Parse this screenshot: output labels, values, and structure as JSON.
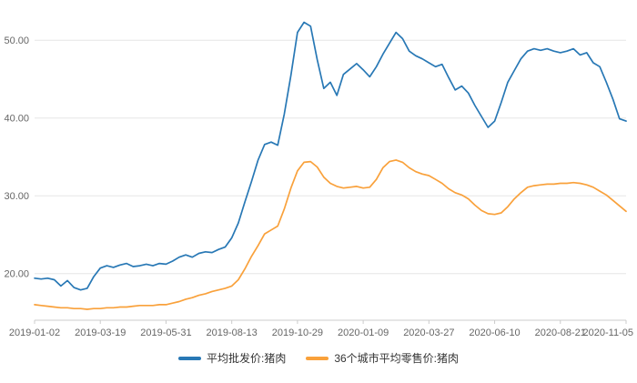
{
  "chart_data": {
    "type": "line",
    "title": "",
    "xlabel": "",
    "ylabel": "",
    "grid": true,
    "legend_position": "bottom",
    "ylim": [
      14,
      54
    ],
    "y_ticks": [
      20,
      30,
      40,
      50
    ],
    "y_tick_labels": [
      "20.00",
      "30.00",
      "40.00",
      "50.00"
    ],
    "x_tick_labels": [
      "2019-01-02",
      "2019-03-19",
      "2019-05-31",
      "2019-08-13",
      "2019-10-29",
      "2020-01-09",
      "2020-03-27",
      "2020-06-10",
      "2020-08-21",
      "2020-11-05"
    ],
    "series": [
      {
        "name": "平均批发价:猪肉",
        "color": "#2878b5",
        "values": [
          19.4,
          19.3,
          19.4,
          19.2,
          18.4,
          19.1,
          18.2,
          17.9,
          18.1,
          19.6,
          20.7,
          21.0,
          20.8,
          21.1,
          21.3,
          20.9,
          21.0,
          21.2,
          21.0,
          21.3,
          21.2,
          21.6,
          22.1,
          22.4,
          22.1,
          22.6,
          22.8,
          22.7,
          23.1,
          23.4,
          24.6,
          26.5,
          29.2,
          31.8,
          34.6,
          36.6,
          36.9,
          36.5,
          40.5,
          45.5,
          51.0,
          52.3,
          51.8,
          47.5,
          43.8,
          44.6,
          42.9,
          45.6,
          46.3,
          47.0,
          46.2,
          45.3,
          46.6,
          48.2,
          49.6,
          51.0,
          50.2,
          48.6,
          48.0,
          47.6,
          47.1,
          46.6,
          46.9,
          45.2,
          43.6,
          44.1,
          43.2,
          41.6,
          40.2,
          38.8,
          39.6,
          42.0,
          44.6,
          46.1,
          47.6,
          48.6,
          48.9,
          48.7,
          48.9,
          48.6,
          48.4,
          48.6,
          48.9,
          48.1,
          48.4,
          47.1,
          46.6,
          44.6,
          42.4,
          39.9,
          39.6
        ]
      },
      {
        "name": "36个城市平均零售价:猪肉",
        "color": "#f9a13b",
        "values": [
          16.0,
          15.9,
          15.8,
          15.7,
          15.6,
          15.6,
          15.5,
          15.5,
          15.4,
          15.5,
          15.5,
          15.6,
          15.6,
          15.7,
          15.7,
          15.8,
          15.9,
          15.9,
          15.9,
          16.0,
          16.0,
          16.2,
          16.4,
          16.7,
          16.9,
          17.2,
          17.4,
          17.7,
          17.9,
          18.1,
          18.4,
          19.2,
          20.6,
          22.2,
          23.6,
          25.1,
          25.6,
          26.1,
          28.3,
          31.0,
          33.2,
          34.3,
          34.4,
          33.7,
          32.4,
          31.6,
          31.2,
          31.0,
          31.1,
          31.2,
          31.0,
          31.1,
          32.1,
          33.6,
          34.4,
          34.6,
          34.3,
          33.6,
          33.1,
          32.8,
          32.6,
          32.1,
          31.6,
          30.9,
          30.4,
          30.1,
          29.6,
          28.8,
          28.1,
          27.7,
          27.6,
          27.8,
          28.6,
          29.6,
          30.4,
          31.1,
          31.3,
          31.4,
          31.5,
          31.5,
          31.6,
          31.6,
          31.7,
          31.6,
          31.4,
          31.1,
          30.6,
          30.1,
          29.4,
          28.7,
          28.0
        ]
      }
    ]
  },
  "colors": {
    "background": "#ffffff",
    "grid": "#e6e6e6",
    "axis": "#cccccc",
    "tick_text": "#666666",
    "legend_text": "#333333"
  }
}
